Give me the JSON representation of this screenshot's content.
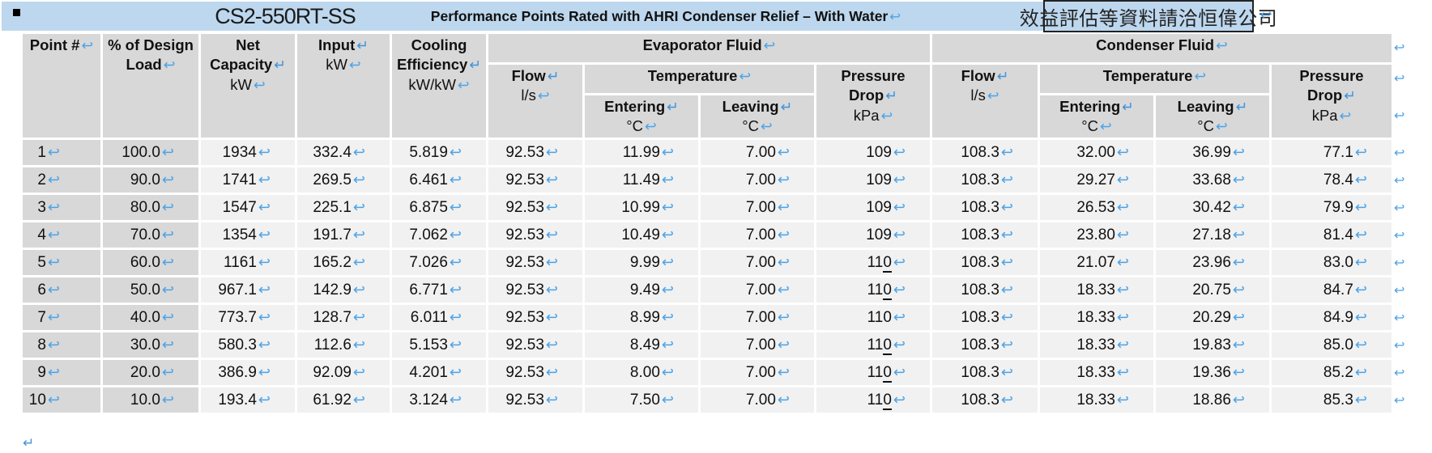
{
  "title_bar": {
    "model": "CS2-550RT-SS",
    "title": "Performance Points Rated with AHRI Condenser Relief – With Water",
    "chinese_note": "效益評估等資料請洽恒偉公司"
  },
  "marks": {
    "cell_end_mark": "↩",
    "line_break_mark": "↵"
  },
  "header": {
    "point": "Point #",
    "load_line1": "% of Design",
    "load_line2": "Load",
    "net_line1": "Net",
    "net_line2": "Capacity",
    "net_unit": "kW",
    "input": "Input",
    "input_unit": "kW",
    "eff_line1": "Cooling",
    "eff_line2": "Efficiency",
    "eff_unit": "kW/kW",
    "evaporator_group": "Evaporator Fluid",
    "condenser_group": "Condenser Fluid",
    "flow": "Flow",
    "flow_unit": "l/s",
    "temperature": "Temperature",
    "entering": "Entering",
    "leaving": "Leaving",
    "temp_unit": "°C",
    "pd_line1": "Pressure",
    "pd_line2": "Drop",
    "pd_unit": "kPa"
  },
  "columns": [
    "Point #",
    "% of Design Load",
    "Net Capacity kW",
    "Input kW",
    "Cooling Efficiency kW/kW",
    "Evap Flow l/s",
    "Evap Entering °C",
    "Evap Leaving °C",
    "Evap Pressure Drop kPa",
    "Cond Flow l/s",
    "Cond Entering °C",
    "Cond Leaving °C",
    "Cond Pressure Drop kPa"
  ],
  "rows": [
    [
      "1",
      "100.0",
      "1934",
      "332.4",
      "5.819",
      "92.53",
      "11.99",
      "7.00",
      "109",
      "108.3",
      "32.00",
      "36.99",
      "77.1"
    ],
    [
      "2",
      "90.0",
      "1741",
      "269.5",
      "6.461",
      "92.53",
      "11.49",
      "7.00",
      "109",
      "108.3",
      "29.27",
      "33.68",
      "78.4"
    ],
    [
      "3",
      "80.0",
      "1547",
      "225.1",
      "6.875",
      "92.53",
      "10.99",
      "7.00",
      "109",
      "108.3",
      "26.53",
      "30.42",
      "79.9"
    ],
    [
      "4",
      "70.0",
      "1354",
      "191.7",
      "7.062",
      "92.53",
      "10.49",
      "7.00",
      "109",
      "108.3",
      "23.80",
      "27.18",
      "81.4"
    ],
    [
      "5",
      "60.0",
      "1161",
      "165.2",
      "7.026",
      "92.53",
      "9.99",
      "7.00",
      "110",
      "108.3",
      "21.07",
      "23.96",
      "83.0"
    ],
    [
      "6",
      "50.0",
      "967.1",
      "142.9",
      "6.771",
      "92.53",
      "9.49",
      "7.00",
      "110",
      "108.3",
      "18.33",
      "20.75",
      "84.7"
    ],
    [
      "7",
      "40.0",
      "773.7",
      "128.7",
      "6.011",
      "92.53",
      "8.99",
      "7.00",
      "110",
      "108.3",
      "18.33",
      "20.29",
      "84.9"
    ],
    [
      "8",
      "30.0",
      "580.3",
      "112.6",
      "5.153",
      "92.53",
      "8.49",
      "7.00",
      "110",
      "108.3",
      "18.33",
      "19.83",
      "85.0"
    ],
    [
      "9",
      "20.0",
      "386.9",
      "92.09",
      "4.201",
      "92.53",
      "8.00",
      "7.00",
      "110",
      "108.3",
      "18.33",
      "19.36",
      "85.2"
    ],
    [
      "10",
      "10.0",
      "193.4",
      "61.92",
      "3.124",
      "92.53",
      "7.50",
      "7.00",
      "110",
      "108.3",
      "18.33",
      "18.86",
      "85.3"
    ]
  ],
  "evap_pd_underlined": [
    false,
    false,
    false,
    false,
    true,
    true,
    false,
    true,
    true,
    true
  ],
  "colors": {
    "title_bg": "#bdd7ee",
    "header_bg": "#d8d8d8",
    "cell_bg": "#f1f1f1",
    "gray_col_bg": "#d8d8d8",
    "mark_blue": "#4da3e6",
    "break_mark_blue": "#3f93db"
  }
}
